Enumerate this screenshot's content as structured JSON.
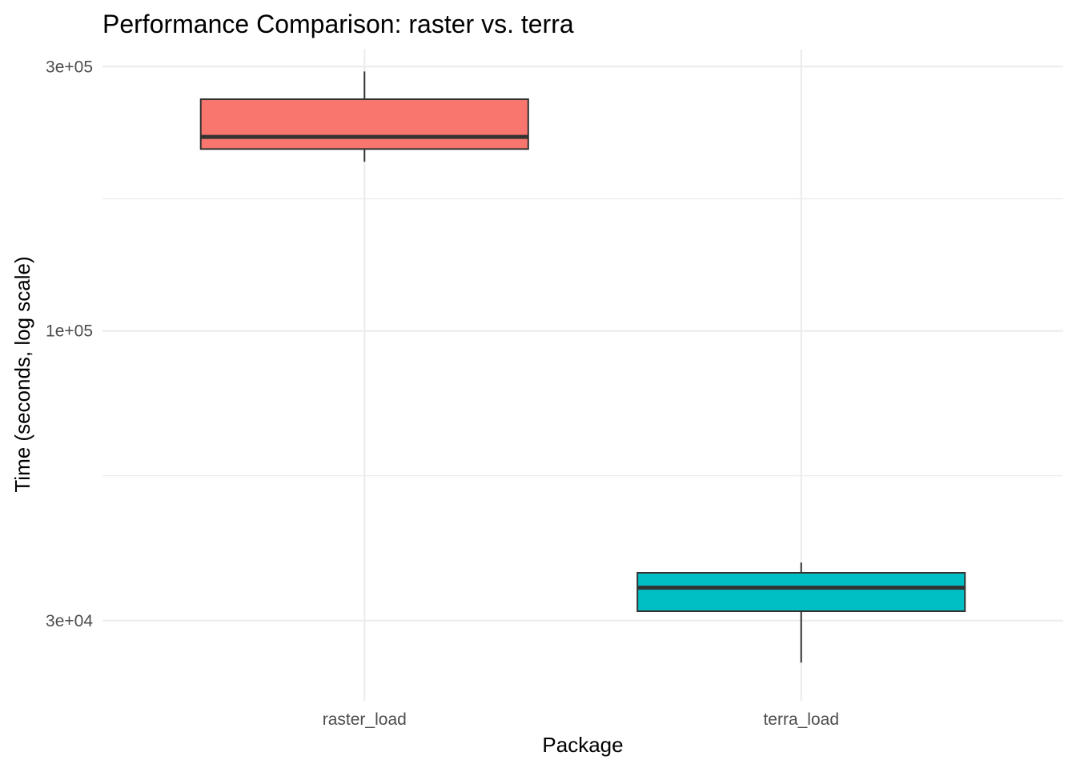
{
  "chart_data": {
    "type": "boxplot",
    "title": "Performance Comparison: raster vs. terra",
    "xlabel": "Package",
    "ylabel": "Time (seconds, log scale)",
    "y_scale": "log10",
    "ylim": [
      21500,
      322000
    ],
    "y_ticks": [
      {
        "value": 30000,
        "label": "3e+04"
      },
      {
        "value": 100000,
        "label": "1e+05"
      },
      {
        "value": 300000,
        "label": "3e+05"
      }
    ],
    "y_minor_ticks": [
      54800,
      173200
    ],
    "grid": true,
    "legend": "none",
    "categories": [
      "raster_load",
      "terra_load"
    ],
    "boxes": [
      {
        "category": "raster_load",
        "whisker_low": 202000,
        "q1": 213000,
        "median": 224000,
        "q3": 262000,
        "whisker_high": 294000,
        "color": "#F8766D"
      },
      {
        "category": "terra_load",
        "whisker_low": 25200,
        "q1": 31200,
        "median": 34400,
        "q3": 36600,
        "whisker_high": 38200,
        "color": "#00BFC4"
      }
    ]
  }
}
